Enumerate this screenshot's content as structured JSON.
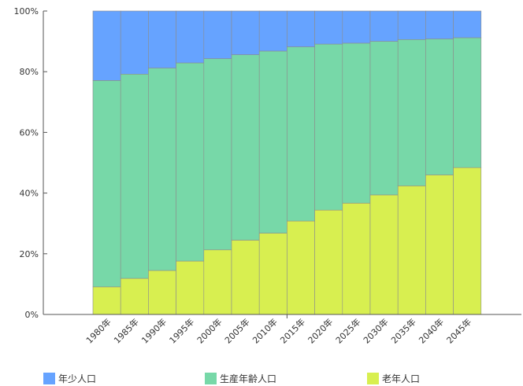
{
  "chart_data": {
    "type": "bar",
    "stacked": true,
    "normalized": true,
    "categories": [
      "1980年",
      "1985年",
      "1990年",
      "1995年",
      "2000年",
      "2005年",
      "2010年",
      "2015年",
      "2020年",
      "2025年",
      "2030年",
      "2035年",
      "2040年",
      "2045年"
    ],
    "series": [
      {
        "name": "老年人口",
        "color": "#d8ef50",
        "values": [
          9.1,
          11.9,
          14.5,
          17.6,
          21.3,
          24.5,
          26.8,
          30.8,
          34.4,
          36.7,
          39.4,
          42.4,
          46.0,
          48.4
        ]
      },
      {
        "name": "生産年齢人口",
        "color": "#77d8a8",
        "values": [
          68.0,
          67.3,
          66.7,
          65.3,
          63.0,
          61.1,
          60.0,
          57.4,
          54.7,
          52.7,
          50.6,
          48.2,
          44.8,
          42.8
        ]
      },
      {
        "name": "年少人口",
        "color": "#66a3ff",
        "values": [
          22.9,
          20.8,
          18.8,
          17.1,
          15.7,
          14.4,
          13.2,
          11.8,
          10.9,
          10.6,
          10.0,
          9.4,
          9.2,
          8.8
        ]
      }
    ],
    "legend_order": [
      "年少人口",
      "生産年齢人口",
      "老年人口"
    ],
    "ylim": [
      0,
      100
    ],
    "yticks": [
      "0%",
      "20%",
      "40%",
      "60%",
      "80%",
      "100%"
    ],
    "legend_position": "bottom",
    "grid": false,
    "title": "",
    "xlabel": "",
    "ylabel": ""
  }
}
